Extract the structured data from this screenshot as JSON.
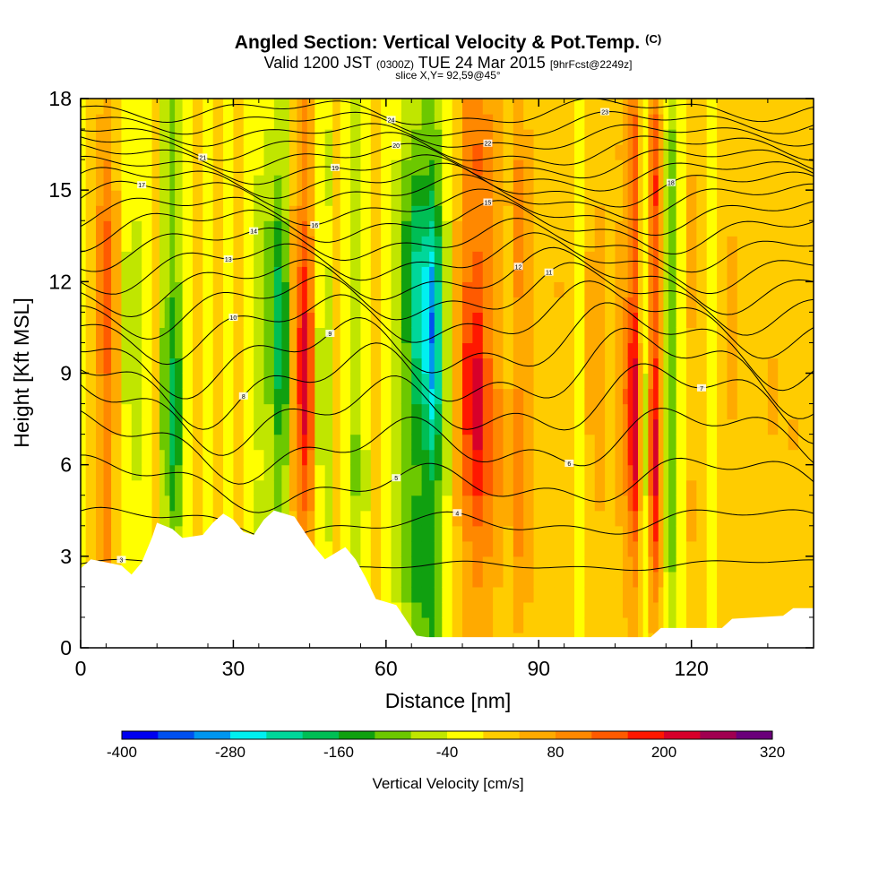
{
  "title": {
    "main": "Angled Section: Vertical Velocity & Pot.Temp.",
    "main_tag": "(C)",
    "valid_prefix": "Valid 1200 JST",
    "valid_zulu": "(0300Z)",
    "valid_date": "TUE 24 Mar 2015",
    "valid_fcst": "[9hrFcst@2249z]",
    "slice": "slice X,Y= 92,59@45°"
  },
  "chart_data": {
    "type": "heatmap",
    "xlabel": "Distance [nm]",
    "ylabel": "Height [Kft MSL]",
    "xlim": [
      0,
      144
    ],
    "ylim": [
      0,
      18
    ],
    "x_ticks": [
      0,
      30,
      60,
      90,
      120
    ],
    "y_ticks": [
      0,
      3,
      6,
      9,
      12,
      15,
      18
    ],
    "x_tick_labels": [
      "0",
      "30",
      "60",
      "90",
      "120"
    ],
    "y_tick_labels": [
      "0",
      "3",
      "6",
      "9",
      "12",
      "15",
      "18"
    ],
    "colorbar": {
      "label": "Vertical Velocity [cm/s]",
      "min": -400,
      "max": 320,
      "step": 40,
      "tick_values": [
        "-400",
        "-280",
        "-160",
        "-40",
        "80",
        "200",
        "320"
      ],
      "colors": [
        "#0000f0",
        "#0050f0",
        "#0096f0",
        "#00f0f0",
        "#00d79a",
        "#00be55",
        "#10a010",
        "#6cc800",
        "#c0e600",
        "#ffff00",
        "#ffcc00",
        "#ffaa00",
        "#ff8800",
        "#ff5a00",
        "#ff1800",
        "#d7002a",
        "#a00050",
        "#6a007a"
      ]
    },
    "velocity_columns": [
      {
        "x": 0,
        "w": -10
      },
      {
        "x": 2,
        "w": 10
      },
      {
        "x": 4,
        "w": 90
      },
      {
        "x": 5,
        "w": 130
      },
      {
        "x": 7,
        "w": 50
      },
      {
        "x": 9,
        "w": -40
      },
      {
        "x": 11,
        "w": -60
      },
      {
        "x": 13,
        "w": -30
      },
      {
        "x": 15,
        "w": 20
      },
      {
        "x": 16,
        "w": -80
      },
      {
        "x": 17,
        "w": -100
      },
      {
        "x": 18,
        "w": -160
      },
      {
        "x": 19,
        "w": -120
      },
      {
        "x": 21,
        "w": -20
      },
      {
        "x": 23,
        "w": 0
      },
      {
        "x": 25,
        "w": -20
      },
      {
        "x": 27,
        "w": 10
      },
      {
        "x": 29,
        "w": -10
      },
      {
        "x": 31,
        "w": 20
      },
      {
        "x": 33,
        "w": -20
      },
      {
        "x": 35,
        "w": -60
      },
      {
        "x": 37,
        "w": -100
      },
      {
        "x": 39,
        "w": -160
      },
      {
        "x": 40,
        "w": -120
      },
      {
        "x": 42,
        "w": 60
      },
      {
        "x": 43,
        "w": 140
      },
      {
        "x": 44,
        "w": 200
      },
      {
        "x": 45,
        "w": 120
      },
      {
        "x": 47,
        "w": -40
      },
      {
        "x": 49,
        "w": -60
      },
      {
        "x": 50,
        "w": 20
      },
      {
        "x": 52,
        "w": -20
      },
      {
        "x": 54,
        "w": -80
      },
      {
        "x": 56,
        "w": -40
      },
      {
        "x": 58,
        "w": 10
      },
      {
        "x": 60,
        "w": -20
      },
      {
        "x": 62,
        "w": -60
      },
      {
        "x": 64,
        "w": -130
      },
      {
        "x": 66,
        "w": -200
      },
      {
        "x": 68,
        "w": -240
      },
      {
        "x": 69,
        "w": -280
      },
      {
        "x": 70,
        "w": -200
      },
      {
        "x": 72,
        "w": -60
      },
      {
        "x": 74,
        "w": 60
      },
      {
        "x": 76,
        "w": 150
      },
      {
        "x": 78,
        "w": 190
      },
      {
        "x": 80,
        "w": 130
      },
      {
        "x": 82,
        "w": 80
      },
      {
        "x": 84,
        "w": 40
      },
      {
        "x": 86,
        "w": 100
      },
      {
        "x": 88,
        "w": 60
      },
      {
        "x": 90,
        "w": 20
      },
      {
        "x": 92,
        "w": 0
      },
      {
        "x": 94,
        "w": 30
      },
      {
        "x": 96,
        "w": 10
      },
      {
        "x": 98,
        "w": -20
      },
      {
        "x": 100,
        "w": 40
      },
      {
        "x": 102,
        "w": 60
      },
      {
        "x": 104,
        "w": 20
      },
      {
        "x": 106,
        "w": 60
      },
      {
        "x": 107,
        "w": 100
      },
      {
        "x": 108,
        "w": 160
      },
      {
        "x": 109,
        "w": 200
      },
      {
        "x": 110,
        "w": 40
      },
      {
        "x": 111,
        "w": -40
      },
      {
        "x": 112,
        "w": 120
      },
      {
        "x": 113,
        "w": 200
      },
      {
        "x": 114,
        "w": 60
      },
      {
        "x": 115,
        "w": -60
      },
      {
        "x": 116,
        "w": -120
      },
      {
        "x": 118,
        "w": -20
      },
      {
        "x": 120,
        "w": 40
      },
      {
        "x": 122,
        "w": 20
      },
      {
        "x": 124,
        "w": -20
      },
      {
        "x": 126,
        "w": 20
      },
      {
        "x": 128,
        "w": 40
      },
      {
        "x": 130,
        "w": 20
      },
      {
        "x": 132,
        "w": 0
      },
      {
        "x": 134,
        "w": 20
      },
      {
        "x": 136,
        "w": 30
      },
      {
        "x": 138,
        "w": 20
      },
      {
        "x": 140,
        "w": 30
      },
      {
        "x": 142,
        "w": 20
      },
      {
        "x": 144,
        "w": 20
      }
    ],
    "terrain": [
      [
        0,
        2.6
      ],
      [
        2,
        2.9
      ],
      [
        8,
        2.7
      ],
      [
        10,
        2.4
      ],
      [
        12,
        2.8
      ],
      [
        14,
        3.6
      ],
      [
        15,
        4.1
      ],
      [
        18,
        3.9
      ],
      [
        20,
        3.6
      ],
      [
        24,
        3.7
      ],
      [
        26,
        4.1
      ],
      [
        28,
        4.4
      ],
      [
        30,
        4.2
      ],
      [
        32,
        3.8
      ],
      [
        34,
        3.7
      ],
      [
        36,
        4.2
      ],
      [
        38,
        4.5
      ],
      [
        42,
        4.3
      ],
      [
        44,
        3.8
      ],
      [
        46,
        3.3
      ],
      [
        48,
        2.9
      ],
      [
        50,
        3.1
      ],
      [
        52,
        3.3
      ],
      [
        54,
        2.9
      ],
      [
        56,
        2.3
      ],
      [
        58,
        1.6
      ],
      [
        62,
        1.4
      ],
      [
        64,
        0.9
      ],
      [
        66,
        0.4
      ],
      [
        68,
        0.35
      ],
      [
        90,
        0.35
      ],
      [
        112,
        0.35
      ],
      [
        114,
        0.65
      ],
      [
        126,
        0.65
      ],
      [
        128,
        0.95
      ],
      [
        138,
        1.05
      ],
      [
        140,
        1.3
      ],
      [
        144,
        1.3
      ]
    ],
    "theta_contours": [
      {
        "base": 2.7,
        "amp": 0.2,
        "label": "3",
        "label_x": 8
      },
      {
        "base": 4.1,
        "amp": 0.5,
        "label": "4",
        "label_x": 74
      },
      {
        "base": 5.4,
        "amp": 0.9,
        "label": "5",
        "label_x": 62
      },
      {
        "base": 6.7,
        "amp": 1.2,
        "label": "6",
        "label_x": 96
      },
      {
        "base": 7.9,
        "amp": 1.4,
        "label": "7",
        "label_x": 122
      },
      {
        "base": 8.9,
        "amp": 1.5,
        "label": "8",
        "label_x": 32
      },
      {
        "base": 9.8,
        "amp": 1.4,
        "label": "9",
        "label_x": 49
      },
      {
        "base": 10.7,
        "amp": 1.2,
        "label": "10",
        "label_x": 30
      },
      {
        "base": 11.4,
        "amp": 1.1,
        "label": "11",
        "label_x": 92
      },
      {
        "base": 12.0,
        "amp": 1.0,
        "label": "12",
        "label_x": 86
      },
      {
        "base": 12.6,
        "amp": 0.9,
        "label": "13",
        "label_x": 29
      },
      {
        "base": 13.2,
        "amp": 0.8,
        "label": "14",
        "label_x": 34
      },
      {
        "base": 13.8,
        "amp": 0.8,
        "label": "15",
        "label_x": 80
      },
      {
        "base": 14.3,
        "amp": 0.7,
        "label": "16",
        "label_x": 46
      },
      {
        "base": 14.8,
        "amp": 0.7,
        "label": "17",
        "label_x": 12
      },
      {
        "base": 15.2,
        "amp": 0.7,
        "label": "18",
        "label_x": 116
      },
      {
        "base": 15.6,
        "amp": 0.6,
        "label": "19",
        "label_x": 50
      },
      {
        "base": 16.0,
        "amp": 0.6,
        "label": "20",
        "label_x": 62
      },
      {
        "base": 16.4,
        "amp": 0.6,
        "label": "21",
        "label_x": 24
      },
      {
        "base": 16.8,
        "amp": 0.5,
        "label": "22",
        "label_x": 80
      },
      {
        "base": 17.2,
        "amp": 0.5,
        "label": "23",
        "label_x": 103
      },
      {
        "base": 17.6,
        "amp": 0.5,
        "label": "24",
        "label_x": 61
      }
    ]
  }
}
